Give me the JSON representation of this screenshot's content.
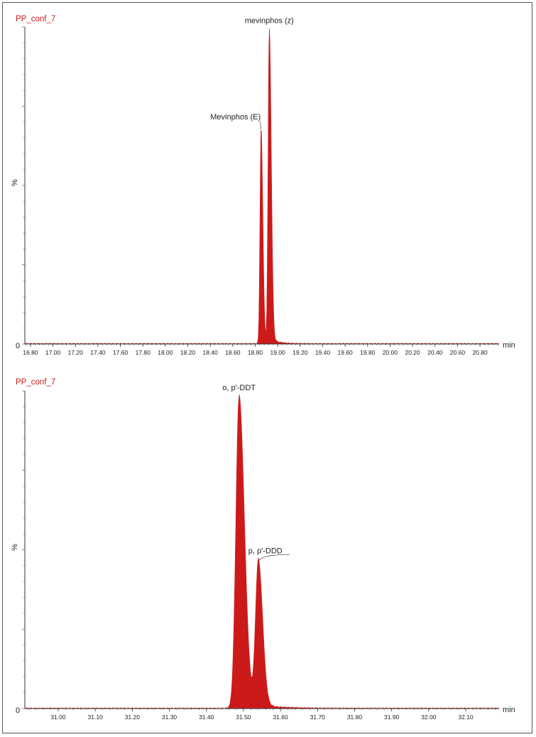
{
  "chart_data": [
    {
      "type": "area",
      "title": "PP_conf_7",
      "xlabel": "min",
      "ylabel": "%",
      "y_zero_label": "0",
      "xlim": [
        16.75,
        20.97
      ],
      "ylim": [
        0,
        100
      ],
      "ticks": [
        16.8,
        17.0,
        17.2,
        17.4,
        17.6,
        17.8,
        18.0,
        18.2,
        18.4,
        18.6,
        18.8,
        19.0,
        19.2,
        19.4,
        19.6,
        19.8,
        20.0,
        20.2,
        20.4,
        20.6,
        20.8
      ],
      "tick_labels": [
        "16.80",
        "17.00",
        "17.20",
        "17.40",
        "17.60",
        "17.80",
        "18.00",
        "18.20",
        "18.40",
        "18.60",
        "18.80",
        "19.00",
        "19.20",
        "19.40",
        "19.60",
        "19.80",
        "20.00",
        "20.20",
        "20.40",
        "20.60",
        "20.80"
      ],
      "fill_color": "#cc1a1a",
      "peaks": [
        {
          "name": "Mevinphos (E)",
          "rt": 18.852,
          "height": 68,
          "sigma": 0.0095,
          "tail": 0.01
        },
        {
          "name": "mevinphos (z)",
          "rt": 18.925,
          "height": 99,
          "sigma": 0.0105,
          "tail": 0.012
        }
      ],
      "annotations": [
        {
          "text": "Mevinphos (E)",
          "rt": 18.852
        },
        {
          "text": "mevinphos (z)",
          "rt": 18.925
        }
      ]
    },
    {
      "type": "area",
      "title": "PP_conf_7",
      "xlabel": "min",
      "ylabel": "%",
      "y_zero_label": "0",
      "xlim": [
        30.91,
        32.19
      ],
      "ylim": [
        0,
        100
      ],
      "ticks": [
        31.0,
        31.1,
        31.2,
        31.3,
        31.4,
        31.5,
        31.6,
        31.7,
        31.8,
        31.9,
        32.0,
        32.1
      ],
      "tick_labels": [
        "31.00",
        "31.10",
        "31.20",
        "31.30",
        "31.40",
        "31.50",
        "31.60",
        "31.70",
        "31.80",
        "31.90",
        "32.00",
        "32.10"
      ],
      "fill_color": "#cc1a1a",
      "peaks": [
        {
          "name": "o, p'-DDT",
          "rt": 31.488,
          "height": 98,
          "sigma": 0.0085,
          "tail": 0.01
        },
        {
          "name": "p, p'-DDD",
          "rt": 31.54,
          "height": 46,
          "sigma": 0.0075,
          "tail": 0.007
        }
      ],
      "annotations": [
        {
          "text": "o, p'-DDT",
          "rt": 31.488
        },
        {
          "text": "p, p'-DDD",
          "rt": 31.54
        }
      ]
    }
  ]
}
